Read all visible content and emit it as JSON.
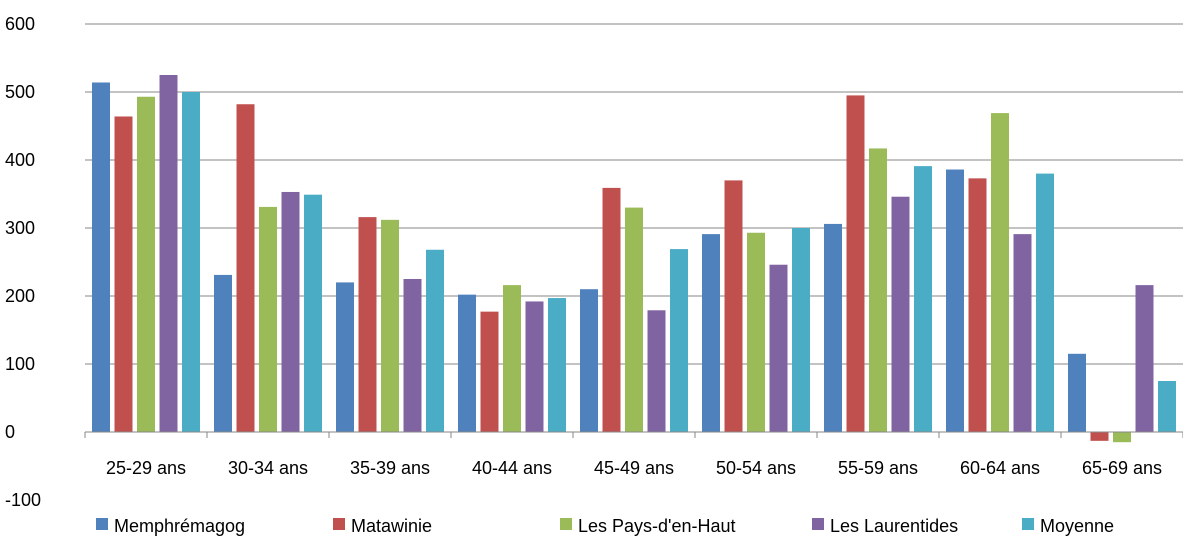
{
  "chart_data": {
    "type": "bar",
    "categories": [
      "25-29 ans",
      "30-34 ans",
      "35-39 ans",
      "40-44 ans",
      "45-49 ans",
      "50-54 ans",
      "55-59 ans",
      "60-64 ans",
      "65-69 ans"
    ],
    "series": [
      {
        "name": "Memphrémagog",
        "color": "#4F81BD",
        "values": [
          514,
          231,
          220,
          202,
          210,
          291,
          306,
          386,
          115
        ]
      },
      {
        "name": "Matawinie",
        "color": "#C0504D",
        "values": [
          464,
          482,
          316,
          177,
          359,
          370,
          495,
          373,
          -13
        ]
      },
      {
        "name": "Les Pays-d'en-Haut",
        "color": "#9BBB59",
        "values": [
          493,
          331,
          312,
          216,
          330,
          293,
          417,
          469,
          -15
        ]
      },
      {
        "name": "Les Laurentides",
        "color": "#8064A2",
        "values": [
          525,
          353,
          225,
          192,
          179,
          246,
          346,
          291,
          216
        ]
      },
      {
        "name": "Moyenne",
        "color": "#4BACC6",
        "values": [
          500,
          349,
          268,
          197,
          269,
          300,
          391,
          380,
          75
        ]
      }
    ],
    "ylim": [
      -100,
      600
    ],
    "yticks": [
      -100,
      0,
      100,
      200,
      300,
      400,
      500,
      600
    ],
    "grid": true,
    "legend_position": "bottom",
    "title": "",
    "xlabel": "",
    "ylabel": ""
  }
}
